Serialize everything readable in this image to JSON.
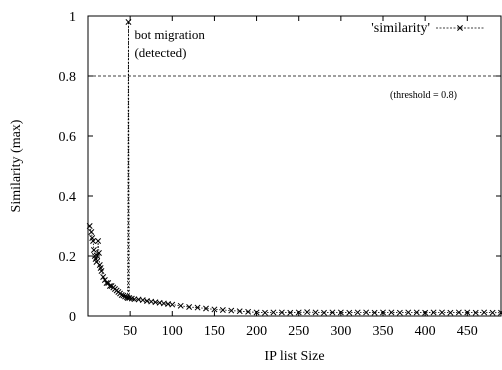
{
  "chart_data": {
    "type": "scatter",
    "title": "",
    "xlabel": "IP list Size",
    "ylabel": "Similarity (max)",
    "xlim": [
      0,
      490
    ],
    "ylim": [
      0,
      1
    ],
    "x_ticks": [
      50,
      100,
      150,
      200,
      250,
      300,
      350,
      400,
      450
    ],
    "x_tick_labels": [
      "50",
      "100",
      "150",
      "200",
      "250",
      "300",
      "350",
      "400",
      "450"
    ],
    "y_ticks": [
      0,
      0.2,
      0.4,
      0.6,
      0.8,
      1
    ],
    "y_tick_labels": [
      "0",
      "0.2",
      "0.4",
      "0.6",
      "0.8",
      "1"
    ],
    "grid": false,
    "legend_position": "top-right",
    "series": [
      {
        "name": "'similarity'",
        "line_style": "dotted",
        "marker": "x",
        "color": "#000000",
        "points": [
          [
            2,
            0.3
          ],
          [
            4,
            0.28
          ],
          [
            5,
            0.26
          ],
          [
            6,
            0.25
          ],
          [
            7,
            0.22
          ],
          [
            8,
            0.2
          ],
          [
            9,
            0.19
          ],
          [
            10,
            0.18
          ],
          [
            11,
            0.2
          ],
          [
            12,
            0.25
          ],
          [
            13,
            0.21
          ],
          [
            14,
            0.17
          ],
          [
            15,
            0.16
          ],
          [
            16,
            0.15
          ],
          [
            18,
            0.13
          ],
          [
            20,
            0.12
          ],
          [
            22,
            0.11
          ],
          [
            24,
            0.11
          ],
          [
            26,
            0.1
          ],
          [
            28,
            0.1
          ],
          [
            30,
            0.095
          ],
          [
            32,
            0.09
          ],
          [
            34,
            0.085
          ],
          [
            36,
            0.08
          ],
          [
            38,
            0.075
          ],
          [
            40,
            0.07
          ],
          [
            42,
            0.068
          ],
          [
            44,
            0.065
          ],
          [
            46,
            0.063
          ],
          [
            47,
            0.06
          ],
          [
            48,
            0.98
          ],
          [
            49,
            0.06
          ],
          [
            52,
            0.058
          ],
          [
            55,
            0.056
          ],
          [
            60,
            0.055
          ],
          [
            65,
            0.053
          ],
          [
            70,
            0.05
          ],
          [
            75,
            0.048
          ],
          [
            80,
            0.046
          ],
          [
            85,
            0.044
          ],
          [
            90,
            0.042
          ],
          [
            95,
            0.04
          ],
          [
            100,
            0.038
          ],
          [
            110,
            0.034
          ],
          [
            120,
            0.03
          ],
          [
            130,
            0.028
          ],
          [
            140,
            0.025
          ],
          [
            150,
            0.022
          ],
          [
            160,
            0.02
          ],
          [
            170,
            0.018
          ],
          [
            180,
            0.016
          ],
          [
            190,
            0.014
          ],
          [
            200,
            0.012
          ],
          [
            210,
            0.011
          ],
          [
            220,
            0.012
          ],
          [
            230,
            0.012
          ],
          [
            240,
            0.011
          ],
          [
            250,
            0.012
          ],
          [
            260,
            0.013
          ],
          [
            270,
            0.012
          ],
          [
            280,
            0.011
          ],
          [
            290,
            0.012
          ],
          [
            300,
            0.012
          ],
          [
            310,
            0.011
          ],
          [
            320,
            0.012
          ],
          [
            330,
            0.012
          ],
          [
            340,
            0.011
          ],
          [
            350,
            0.012
          ],
          [
            360,
            0.012
          ],
          [
            370,
            0.011
          ],
          [
            380,
            0.012
          ],
          [
            390,
            0.012
          ],
          [
            400,
            0.011
          ],
          [
            410,
            0.012
          ],
          [
            420,
            0.012
          ],
          [
            430,
            0.011
          ],
          [
            440,
            0.012
          ],
          [
            450,
            0.012
          ],
          [
            460,
            0.011
          ],
          [
            470,
            0.012
          ],
          [
            480,
            0.011
          ],
          [
            490,
            0.011
          ]
        ]
      }
    ],
    "threshold": {
      "value": 0.8,
      "label": "(threshold = 0.8)"
    },
    "annotations": [
      {
        "text": "bot migration",
        "x": 48
      },
      {
        "text": "(detected)",
        "x": 48
      }
    ],
    "event_line_x": 48
  }
}
